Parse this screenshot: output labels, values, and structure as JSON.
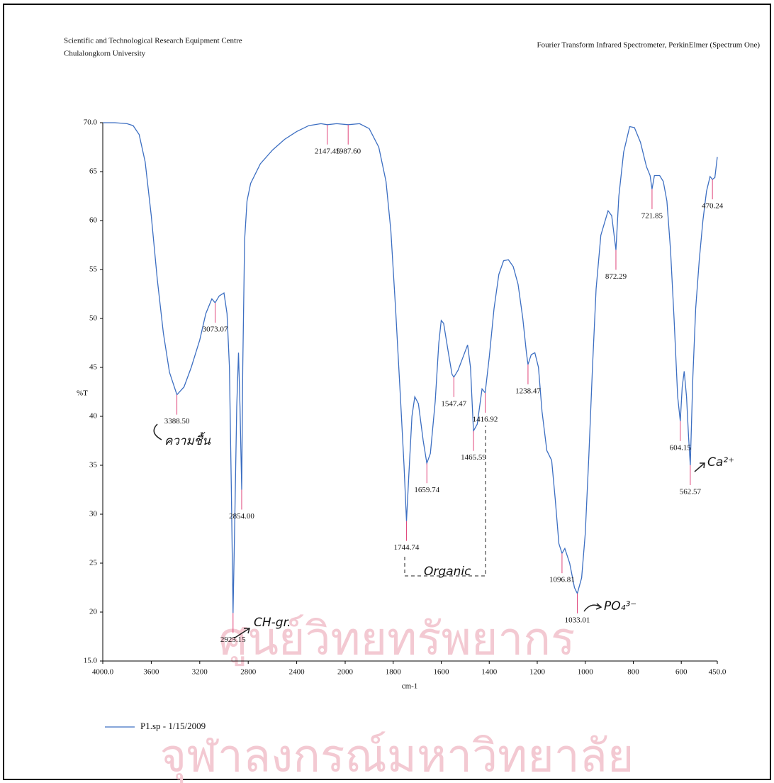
{
  "header": {
    "left": [
      "Scientific and Technological Research Equipment Centre",
      "Chulalongkorn University"
    ],
    "right": "Fourier Transform Infrared Spectrometer, PerkinElmer (Spectrum One)"
  },
  "watermark": [
    "ศูนย์วิทยทรัพยากร",
    "จุฬาลงกรณ์มหาวิทยาลัย"
  ],
  "chart_data": {
    "type": "line",
    "x_label": "cm-1",
    "y_label": "%T",
    "xlim": [
      4000,
      450
    ],
    "x_scale_break": 2000,
    "ylim": [
      15,
      70
    ],
    "xticks": [
      {
        "value": 4000,
        "label": "4000.0"
      },
      3600,
      3200,
      2800,
      2400,
      2000,
      1800,
      1600,
      1400,
      1200,
      1000,
      800,
      600,
      {
        "value": 450,
        "label": "450.0"
      }
    ],
    "yticks": [
      {
        "value": 15,
        "label": "15.0"
      },
      20,
      25,
      30,
      35,
      40,
      45,
      50,
      55,
      60,
      65,
      {
        "value": 70,
        "label": "70.0"
      }
    ],
    "x": [
      4000,
      3900,
      3800,
      3750,
      3700,
      3650,
      3600,
      3550,
      3500,
      3450,
      3388.5,
      3330,
      3270,
      3200,
      3150,
      3100,
      3073.07,
      3040,
      3000,
      2975,
      2955,
      2940,
      2925.15,
      2910,
      2895,
      2880,
      2868,
      2854,
      2845,
      2830,
      2810,
      2780,
      2700,
      2600,
      2500,
      2400,
      2300,
      2200,
      2147.45,
      2070,
      1987.6,
      1940,
      1900,
      1860,
      1830,
      1810,
      1790,
      1770,
      1755,
      1744.74,
      1735,
      1722,
      1710,
      1695,
      1675,
      1659.74,
      1645,
      1625,
      1610,
      1600,
      1590,
      1570,
      1555,
      1547.47,
      1530,
      1510,
      1490,
      1478,
      1465.59,
      1450,
      1430,
      1416.92,
      1400,
      1380,
      1360,
      1340,
      1320,
      1300,
      1280,
      1260,
      1245,
      1238.47,
      1225,
      1210,
      1195,
      1180,
      1160,
      1140,
      1125,
      1110,
      1096.81,
      1085,
      1065,
      1045,
      1033.01,
      1015,
      1000,
      985,
      970,
      955,
      935,
      905,
      890,
      872.29,
      860,
      840,
      815,
      795,
      770,
      745,
      730,
      721.85,
      712,
      690,
      675,
      660,
      645,
      630,
      615,
      604.15,
      596,
      588,
      578,
      570,
      562.57,
      552,
      540,
      525,
      510,
      495,
      480,
      470.24,
      460,
      450
    ],
    "series": [
      {
        "name": "P1.sp - 1/15/2009",
        "color": "#3d6fc2",
        "values": [
          70.0,
          70.0,
          69.9,
          69.7,
          68.8,
          66.0,
          60.5,
          54.0,
          48.5,
          44.5,
          42.2,
          43.0,
          45.0,
          47.8,
          50.5,
          52.0,
          51.6,
          52.3,
          52.6,
          50.5,
          45.0,
          33.0,
          19.9,
          30.0,
          41.0,
          46.5,
          41.0,
          32.5,
          45.0,
          58.0,
          62.0,
          63.8,
          65.8,
          67.2,
          68.3,
          69.1,
          69.7,
          69.9,
          69.8,
          69.9,
          69.8,
          69.9,
          69.4,
          67.5,
          64.0,
          59.0,
          51.0,
          42.0,
          35.0,
          29.3,
          34.0,
          40.0,
          42.0,
          41.3,
          37.5,
          35.2,
          36.2,
          41.5,
          47.5,
          49.8,
          49.5,
          46.5,
          44.3,
          44.0,
          44.7,
          46.0,
          47.3,
          45.0,
          38.5,
          39.2,
          42.8,
          42.4,
          46.0,
          51.0,
          54.5,
          55.9,
          56.0,
          55.3,
          53.5,
          50.0,
          46.5,
          45.3,
          46.3,
          46.5,
          45.0,
          40.5,
          36.5,
          35.5,
          31.5,
          27.0,
          26.0,
          26.5,
          25.0,
          22.5,
          21.9,
          23.5,
          28.0,
          36.0,
          45.0,
          53.0,
          58.5,
          61.0,
          60.5,
          57.0,
          62.5,
          67.0,
          69.6,
          69.5,
          68.0,
          65.5,
          64.6,
          63.2,
          64.6,
          64.6,
          64.0,
          62.0,
          57.0,
          50.0,
          42.0,
          39.5,
          43.0,
          44.6,
          42.0,
          38.0,
          35.0,
          44.0,
          51.0,
          56.0,
          60.0,
          63.0,
          64.5,
          64.2,
          64.4,
          66.5
        ]
      }
    ],
    "peak_labels": [
      null,
      null,
      null,
      null,
      null,
      null,
      null,
      null,
      null,
      null,
      "3388.50",
      null,
      null,
      null,
      null,
      null,
      "3073.07",
      null,
      null,
      null,
      null,
      null,
      "2925.15",
      null,
      null,
      null,
      null,
      "2854.00",
      null,
      null,
      null,
      null,
      null,
      null,
      null,
      null,
      null,
      null,
      "2147.45",
      null,
      "1987.60",
      null,
      null,
      null,
      null,
      null,
      null,
      null,
      null,
      "1744.74",
      null,
      null,
      null,
      null,
      null,
      "1659.74",
      null,
      null,
      null,
      null,
      null,
      null,
      null,
      "1547.47",
      null,
      null,
      null,
      null,
      "1465.59",
      null,
      null,
      "1416.92",
      null,
      null,
      null,
      null,
      null,
      null,
      null,
      null,
      null,
      "1238.47",
      null,
      null,
      null,
      null,
      null,
      null,
      null,
      null,
      "1096.81",
      null,
      null,
      null,
      "1033.01",
      null,
      null,
      null,
      null,
      null,
      null,
      null,
      null,
      "872.29",
      null,
      null,
      null,
      null,
      null,
      null,
      null,
      "721.85",
      null,
      null,
      null,
      null,
      null,
      null,
      null,
      "604.15",
      null,
      null,
      null,
      null,
      "562.57",
      null,
      null,
      null,
      null,
      null,
      null,
      "470.24",
      null,
      null
    ],
    "annotations": [
      "ความชื้น",
      "CH-gr.",
      "Organic",
      "PO₄³⁻",
      "Ca²⁺"
    ],
    "legend": "bottom-left"
  }
}
